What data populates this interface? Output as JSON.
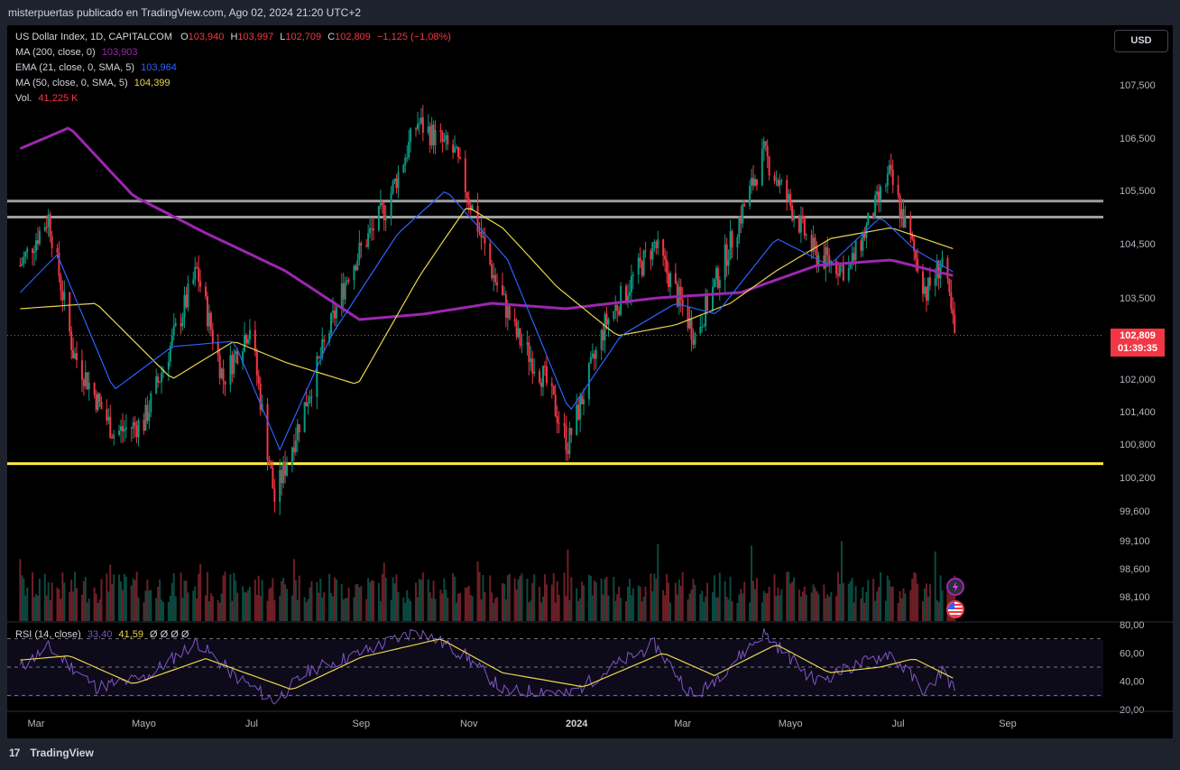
{
  "header": {
    "publisher_line": "misterpuertas publicado en TradingView.com, Ago 02, 2024 21:20 UTC+2"
  },
  "legend": {
    "symbol": "US Dollar Index, 1D, CAPITALCOM",
    "o_label": "O",
    "o_val": "103,940",
    "h_label": "H",
    "h_val": "103,997",
    "l_label": "L",
    "l_val": "102,709",
    "c_label": "C",
    "c_val": "102,809",
    "change": "−1,125 (−1,08%)",
    "ma200_label": "MA (200, close, 0)",
    "ma200_val": "103,903",
    "ema21_label": "EMA (21, close, 0, SMA, 5)",
    "ema21_val": "103,964",
    "ma50_label": "MA (50, close, 0, SMA, 5)",
    "ma50_val": "104,399",
    "vol_label": "Vol.",
    "vol_val": "41,225 K",
    "rsi_label": "RSI (14, close)",
    "rsi_val1": "33,40",
    "rsi_val2": "41,59",
    "rsi_rest": "Ø  Ø  Ø  Ø"
  },
  "currency_button": "USD",
  "price_tag": {
    "price": "102,809",
    "countdown": "01:39:35"
  },
  "footer": {
    "brand": "TradingView"
  },
  "colors": {
    "up": "#089981",
    "down": "#f23645",
    "ma200": "#9c27b0",
    "ema21": "#2962ff",
    "ma50": "#e8d44d",
    "hline_yellow": "#ffeb3b",
    "hline_gray": "#9e9e9e",
    "rsi_line": "#7e57c2"
  },
  "chart_data": {
    "type": "candlestick",
    "price_axis_ticks": [
      "107,500",
      "106,500",
      "105,500",
      "104,500",
      "103,500",
      "102,000",
      "101,400",
      "100,800",
      "100,200",
      "99,600",
      "99,100",
      "98,600",
      "98,100"
    ],
    "rsi_axis_ticks": [
      "80,00",
      "60,00",
      "40,00",
      "20,00"
    ],
    "time_axis_ticks": [
      "Mar",
      "Mayo",
      "Jul",
      "Sep",
      "Nov",
      "2024",
      "Mar",
      "Mayo",
      "Jul",
      "Sep"
    ],
    "horizontal_levels": [
      105.3,
      105.0,
      100.45
    ],
    "last_close": 102.809,
    "close_path": [
      {
        "t": "2023-02-20",
        "close": 104.1
      },
      {
        "t": "2023-03-08",
        "close": 105.0
      },
      {
        "t": "2023-03-22",
        "close": 102.5
      },
      {
        "t": "2023-04-14",
        "close": 101.0
      },
      {
        "t": "2023-05-01",
        "close": 101.2
      },
      {
        "t": "2023-05-31",
        "close": 104.0
      },
      {
        "t": "2023-06-15",
        "close": 102.0
      },
      {
        "t": "2023-06-30",
        "close": 103.0
      },
      {
        "t": "2023-07-14",
        "close": 99.8
      },
      {
        "t": "2023-07-31",
        "close": 101.5
      },
      {
        "t": "2023-08-25",
        "close": 104.0
      },
      {
        "t": "2023-09-15",
        "close": 105.2
      },
      {
        "t": "2023-10-03",
        "close": 106.8
      },
      {
        "t": "2023-10-24",
        "close": 106.2
      },
      {
        "t": "2023-11-14",
        "close": 104.0
      },
      {
        "t": "2023-11-28",
        "close": 102.8
      },
      {
        "t": "2023-12-14",
        "close": 102.0
      },
      {
        "t": "2023-12-27",
        "close": 100.8
      },
      {
        "t": "2024-01-17",
        "close": 103.0
      },
      {
        "t": "2024-02-14",
        "close": 104.5
      },
      {
        "t": "2024-03-08",
        "close": 102.8
      },
      {
        "t": "2024-03-28",
        "close": 104.5
      },
      {
        "t": "2024-04-16",
        "close": 106.2
      },
      {
        "t": "2024-05-15",
        "close": 104.3
      },
      {
        "t": "2024-06-03",
        "close": 104.0
      },
      {
        "t": "2024-06-26",
        "close": 105.8
      },
      {
        "t": "2024-07-17",
        "close": 103.6
      },
      {
        "t": "2024-07-26",
        "close": 104.2
      },
      {
        "t": "2024-08-02",
        "close": 102.809
      }
    ],
    "ma200_path": [
      {
        "t": "2023-02-20",
        "value": 106.3
      },
      {
        "t": "2023-03-20",
        "value": 106.7
      },
      {
        "t": "2023-04-25",
        "value": 105.4
      },
      {
        "t": "2023-06-05",
        "value": 104.7
      },
      {
        "t": "2023-07-20",
        "value": 104.0
      },
      {
        "t": "2023-08-31",
        "value": 103.1
      },
      {
        "t": "2023-10-06",
        "value": 103.2
      },
      {
        "t": "2023-11-14",
        "value": 103.4
      },
      {
        "t": "2023-12-26",
        "value": 103.3
      },
      {
        "t": "2024-02-16",
        "value": 103.5
      },
      {
        "t": "2024-04-03",
        "value": 103.6
      },
      {
        "t": "2024-05-16",
        "value": 104.1
      },
      {
        "t": "2024-06-27",
        "value": 104.2
      },
      {
        "t": "2024-08-02",
        "value": 103.903
      }
    ],
    "ma50_path": [
      {
        "t": "2023-02-20",
        "value": 103.3
      },
      {
        "t": "2023-04-04",
        "value": 103.4
      },
      {
        "t": "2023-05-17",
        "value": 102.0
      },
      {
        "t": "2023-06-21",
        "value": 102.7
      },
      {
        "t": "2023-07-21",
        "value": 102.3
      },
      {
        "t": "2023-08-30",
        "value": 101.9
      },
      {
        "t": "2023-10-04",
        "value": 103.9
      },
      {
        "t": "2023-10-31",
        "value": 105.2
      },
      {
        "t": "2023-11-20",
        "value": 104.8
      },
      {
        "t": "2023-12-21",
        "value": 103.7
      },
      {
        "t": "2024-01-24",
        "value": 102.8
      },
      {
        "t": "2024-02-26",
        "value": 103.0
      },
      {
        "t": "2024-03-28",
        "value": 103.4
      },
      {
        "t": "2024-04-23",
        "value": 104.0
      },
      {
        "t": "2024-05-24",
        "value": 104.6
      },
      {
        "t": "2024-06-27",
        "value": 104.8
      },
      {
        "t": "2024-08-02",
        "value": 104.399
      }
    ],
    "ema21_path": [
      {
        "t": "2023-02-20",
        "value": 103.6
      },
      {
        "t": "2023-03-13",
        "value": 104.3
      },
      {
        "t": "2023-04-14",
        "value": 101.8
      },
      {
        "t": "2023-05-17",
        "value": 102.6
      },
      {
        "t": "2023-06-21",
        "value": 102.7
      },
      {
        "t": "2023-07-17",
        "value": 100.7
      },
      {
        "t": "2023-08-15",
        "value": 102.8
      },
      {
        "t": "2023-09-22",
        "value": 104.7
      },
      {
        "t": "2023-10-19",
        "value": 105.5
      },
      {
        "t": "2023-11-23",
        "value": 104.2
      },
      {
        "t": "2023-12-28",
        "value": 101.4
      },
      {
        "t": "2024-01-26",
        "value": 102.8
      },
      {
        "t": "2024-02-26",
        "value": 103.4
      },
      {
        "t": "2024-03-20",
        "value": 103.2
      },
      {
        "t": "2024-04-23",
        "value": 104.6
      },
      {
        "t": "2024-05-23",
        "value": 104.1
      },
      {
        "t": "2024-06-21",
        "value": 105.0
      },
      {
        "t": "2024-07-10",
        "value": 104.4
      },
      {
        "t": "2024-08-02",
        "value": 103.964
      }
    ],
    "rsi_path": [
      {
        "t": "2023-02-20",
        "value": 50
      },
      {
        "t": "2023-03-08",
        "value": 64
      },
      {
        "t": "2023-04-04",
        "value": 36
      },
      {
        "t": "2023-05-01",
        "value": 42
      },
      {
        "t": "2023-05-31",
        "value": 68
      },
      {
        "t": "2023-06-21",
        "value": 44
      },
      {
        "t": "2023-07-14",
        "value": 26
      },
      {
        "t": "2023-08-03",
        "value": 48
      },
      {
        "t": "2023-09-01",
        "value": 60
      },
      {
        "t": "2023-10-03",
        "value": 76
      },
      {
        "t": "2023-10-30",
        "value": 58
      },
      {
        "t": "2023-11-22",
        "value": 32
      },
      {
        "t": "2023-12-14",
        "value": 34
      },
      {
        "t": "2023-12-27",
        "value": 30
      },
      {
        "t": "2024-01-24",
        "value": 52
      },
      {
        "t": "2024-02-14",
        "value": 66
      },
      {
        "t": "2024-03-08",
        "value": 28
      },
      {
        "t": "2024-04-16",
        "value": 74
      },
      {
        "t": "2024-05-15",
        "value": 40
      },
      {
        "t": "2024-06-26",
        "value": 60
      },
      {
        "t": "2024-07-17",
        "value": 32
      },
      {
        "t": "2024-07-26",
        "value": 48
      },
      {
        "t": "2024-08-02",
        "value": 33.4
      }
    ],
    "rsi_ma_path": [
      {
        "t": "2023-02-20",
        "value": 55
      },
      {
        "t": "2023-03-20",
        "value": 58
      },
      {
        "t": "2023-04-25",
        "value": 38
      },
      {
        "t": "2023-06-05",
        "value": 56
      },
      {
        "t": "2023-07-24",
        "value": 34
      },
      {
        "t": "2023-09-01",
        "value": 57
      },
      {
        "t": "2023-10-16",
        "value": 70
      },
      {
        "t": "2023-11-20",
        "value": 46
      },
      {
        "t": "2024-01-05",
        "value": 36
      },
      {
        "t": "2024-02-19",
        "value": 60
      },
      {
        "t": "2024-03-19",
        "value": 44
      },
      {
        "t": "2024-04-23",
        "value": 66
      },
      {
        "t": "2024-05-23",
        "value": 46
      },
      {
        "t": "2024-06-21",
        "value": 50
      },
      {
        "t": "2024-07-10",
        "value": 56
      },
      {
        "t": "2024-08-02",
        "value": 41.59
      }
    ],
    "rsi_levels": [
      70,
      50,
      30
    ]
  }
}
